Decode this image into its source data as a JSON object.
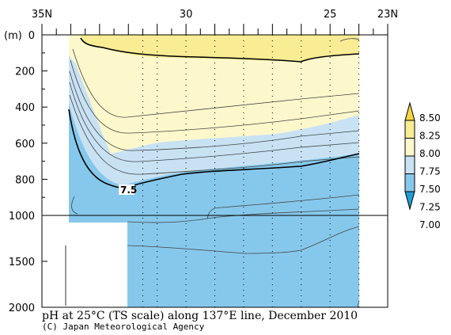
{
  "chart_data": {
    "type": "contour",
    "title": "pH at 25°C (TS scale) along 137°E line, December 2010",
    "credit": "(C) Japan Meteorological Agency",
    "x_axis": {
      "labels": [
        "35N",
        "30",
        "25",
        "23N"
      ],
      "label_lat": [
        35,
        30,
        25,
        23
      ],
      "range": [
        35,
        23
      ]
    },
    "y_axis": {
      "unit": "(m)",
      "upper_ticks": [
        0,
        200,
        400,
        600,
        800,
        1000
      ],
      "lower_ticks": [
        1500,
        2000
      ],
      "range": [
        0,
        2000
      ]
    },
    "contour_label": "7.5",
    "colorbar": {
      "levels": [
        "8.50",
        "8.25",
        "8.00",
        "7.75",
        "7.50",
        "7.25",
        "7.00"
      ],
      "colors": [
        "#F2D544",
        "#F8EC94",
        "#FCF8CC",
        "#C8E2F4",
        "#86C8EC",
        "#1E9ED4"
      ]
    },
    "colors": {
      "yellow_strong": "#F8EC94",
      "yellow_light": "#FCF8CC",
      "blue_light": "#C8E2F4",
      "blue_mid": "#86C8EC"
    }
  }
}
